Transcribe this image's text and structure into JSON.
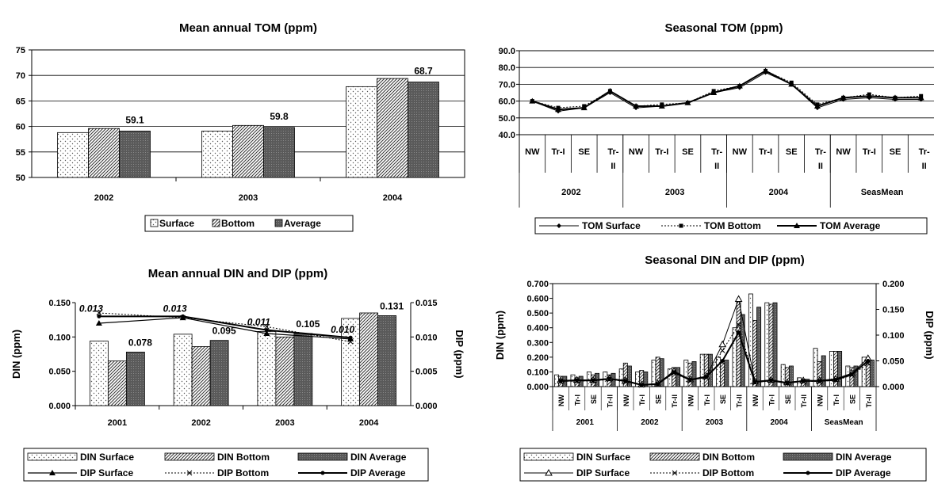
{
  "colors": {
    "surface": "#ffffff",
    "bottom": "#c8c8c8",
    "average": "#6b6b6b",
    "line": "#000000"
  },
  "chart_data": [
    {
      "id": "mean-tom",
      "type": "bar",
      "title": "Mean annual TOM (ppm)",
      "categories": [
        "2002",
        "2003",
        "2004"
      ],
      "series": [
        {
          "name": "Surface",
          "values": [
            58.8,
            59.1,
            67.8
          ]
        },
        {
          "name": "Bottom",
          "values": [
            59.6,
            60.2,
            69.4
          ]
        },
        {
          "name": "Average",
          "values": [
            59.1,
            59.8,
            68.7
          ]
        }
      ],
      "data_labels": [
        "59.1",
        "59.8",
        "68.7"
      ],
      "yticks": [
        "50",
        "55",
        "60",
        "65",
        "70",
        "75"
      ],
      "ylim": [
        50,
        75
      ],
      "grid": true,
      "legend": "bottom"
    },
    {
      "id": "seasonal-tom",
      "type": "line",
      "title": "Seasonal TOM (ppm)",
      "season_labels": [
        "NW",
        "Tr-I",
        "SE",
        "Tr-II",
        "NW",
        "Tr-I",
        "SE",
        "Tr-II",
        "NW",
        "Tr-I",
        "SE",
        "Tr-II",
        "NW",
        "Tr-I",
        "SE",
        "Tr-II"
      ],
      "groups": [
        "2002",
        "2003",
        "2004",
        "SeasMean"
      ],
      "series": [
        {
          "name": "TOM Surface",
          "values": [
            60,
            54,
            56,
            65,
            56,
            57,
            59,
            65,
            68,
            77,
            70,
            56,
            61,
            62,
            61,
            61
          ]
        },
        {
          "name": "TOM Bottom",
          "values": [
            60,
            56,
            57,
            66,
            57,
            58,
            59,
            66,
            69,
            78,
            71,
            58,
            62,
            64,
            62,
            63
          ]
        },
        {
          "name": "TOM Average",
          "values": [
            60,
            55,
            56,
            66,
            57,
            57,
            59,
            65,
            69,
            78,
            70,
            57,
            62,
            63,
            62,
            62
          ]
        }
      ],
      "yticks": [
        "40.0",
        "50.0",
        "60.0",
        "70.0",
        "80.0",
        "90.0"
      ],
      "ylim": [
        40,
        90
      ],
      "grid": true,
      "legend": "bottom"
    },
    {
      "id": "mean-din-dip",
      "type": "bar",
      "title": "Mean annual DIN and DIP (ppm)",
      "categories": [
        "2001",
        "2002",
        "2003",
        "2004"
      ],
      "series": [
        {
          "name": "DIN Surface",
          "values": [
            0.094,
            0.104,
            0.108,
            0.127
          ]
        },
        {
          "name": "DIN Bottom",
          "values": [
            0.065,
            0.086,
            0.1,
            0.135
          ]
        },
        {
          "name": "DIN Average",
          "values": [
            0.078,
            0.095,
            0.105,
            0.131
          ]
        },
        {
          "name": "DIP Surface",
          "axis": "right",
          "values": [
            0.012,
            0.0128,
            0.0105,
            0.0097
          ]
        },
        {
          "name": "DIP Bottom",
          "axis": "right",
          "values": [
            0.0135,
            0.0128,
            0.0115,
            0.0093
          ]
        },
        {
          "name": "DIP Average",
          "axis": "right",
          "values": [
            0.013,
            0.013,
            0.011,
            0.0099
          ]
        }
      ],
      "bar_labels": [
        "0.078",
        "0.095",
        "0.105",
        "0.131"
      ],
      "dip_labels": [
        "0.013",
        "0.013",
        "0.011",
        "0.010"
      ],
      "ylabel": "DIN (ppm)",
      "y2label": "DIP (ppm)",
      "yticks": [
        "0.000",
        "0.050",
        "0.100",
        "0.150"
      ],
      "y2ticks": [
        "0.000",
        "0.005",
        "0.010",
        "0.015"
      ],
      "ylim": [
        0,
        0.15
      ],
      "y2lim": [
        0,
        0.015
      ],
      "grid": false,
      "legend": "bottom"
    },
    {
      "id": "seasonal-din-dip",
      "type": "bar",
      "title": "Seasonal DIN and DIP (ppm)",
      "season_labels": [
        "NW",
        "Tr-I",
        "SE",
        "Tr-II",
        "NW",
        "Tr-I",
        "SE",
        "Tr-II",
        "NW",
        "Tr-I",
        "SE",
        "Tr-II",
        "NW",
        "Tr-I",
        "SE",
        "Tr-II",
        "NW",
        "Tr-I",
        "SE",
        "Tr-II"
      ],
      "groups": [
        "2001",
        "2002",
        "2003",
        "2004",
        "SeasMean"
      ],
      "series": [
        {
          "name": "DIN Surface",
          "values": [
            0.08,
            0.08,
            0.1,
            0.1,
            0.12,
            0.1,
            0.18,
            0.12,
            0.18,
            0.22,
            0.2,
            0.4,
            0.63,
            0.57,
            0.15,
            0.06,
            0.26,
            0.24,
            0.14,
            0.2
          ]
        },
        {
          "name": "DIN Bottom",
          "values": [
            0.07,
            0.06,
            0.08,
            0.08,
            0.16,
            0.11,
            0.2,
            0.13,
            0.16,
            0.22,
            0.16,
            0.58,
            0.45,
            0.56,
            0.13,
            0.05,
            0.17,
            0.24,
            0.13,
            0.17
          ]
        },
        {
          "name": "DIN Average",
          "values": [
            0.07,
            0.07,
            0.09,
            0.09,
            0.14,
            0.1,
            0.19,
            0.13,
            0.17,
            0.22,
            0.18,
            0.49,
            0.54,
            0.57,
            0.14,
            0.05,
            0.21,
            0.24,
            0.14,
            0.18
          ]
        },
        {
          "name": "DIP Surface",
          "axis": "right",
          "values": [
            0.012,
            0.013,
            0.013,
            0.016,
            0.012,
            0.004,
            0.006,
            0.03,
            0.014,
            0.02,
            0.082,
            0.17,
            0.01,
            0.013,
            0.008,
            0.012,
            0.012,
            0.015,
            0.026,
            0.055
          ]
        },
        {
          "name": "DIP Bottom",
          "axis": "right",
          "values": [
            0.01,
            0.011,
            0.011,
            0.014,
            0.01,
            0.003,
            0.005,
            0.026,
            0.012,
            0.018,
            0.07,
            0.12,
            0.008,
            0.011,
            0.007,
            0.01,
            0.01,
            0.012,
            0.022,
            0.045
          ]
        },
        {
          "name": "DIP Average",
          "axis": "right",
          "values": [
            0.011,
            0.012,
            0.012,
            0.015,
            0.011,
            0.003,
            0.005,
            0.028,
            0.013,
            0.019,
            0.05,
            0.105,
            0.009,
            0.012,
            0.007,
            0.011,
            0.011,
            0.013,
            0.024,
            0.05
          ]
        }
      ],
      "ylabel": "DIN (ppm)",
      "y2label": "DIP (ppm)",
      "yticks": [
        "0.000",
        "0.100",
        "0.200",
        "0.300",
        "0.400",
        "0.500",
        "0.600",
        "0.700"
      ],
      "y2ticks": [
        "0.000",
        "0.050",
        "0.100",
        "0.150",
        "0.200"
      ],
      "ylim": [
        0,
        0.7
      ],
      "y2lim": [
        0,
        0.2
      ],
      "grid": false,
      "legend": "bottom"
    }
  ]
}
